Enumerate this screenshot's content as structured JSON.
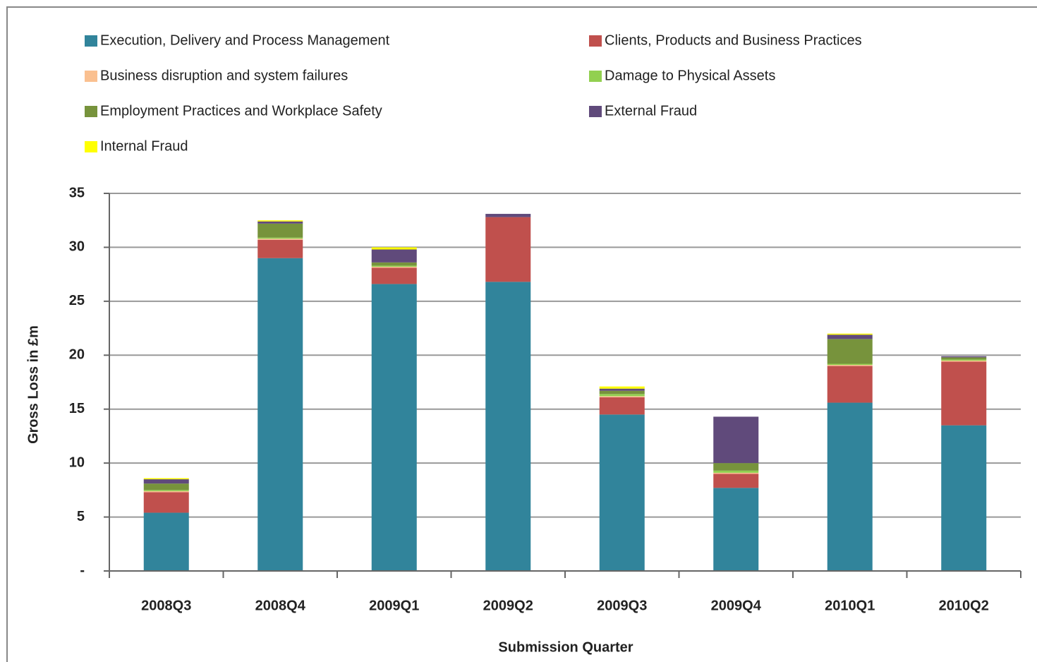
{
  "chart_data": {
    "type": "stacked-bar",
    "y_label": "Gross Loss in £m",
    "x_label": "Submission Quarter",
    "categories": [
      "2008Q3",
      "2008Q4",
      "2009Q1",
      "2009Q2",
      "2009Q3",
      "2009Q4",
      "2010Q1",
      "2010Q2"
    ],
    "series": [
      {
        "name": "Execution, Delivery and Process Management",
        "color": "#31849b",
        "values": [
          5.4,
          29.0,
          26.6,
          26.8,
          14.5,
          7.7,
          15.6,
          13.5
        ]
      },
      {
        "name": "Clients, Products and Business Practices",
        "color": "#c0504d",
        "values": [
          1.9,
          1.7,
          1.5,
          6.0,
          1.6,
          1.3,
          3.4,
          5.9
        ]
      },
      {
        "name": "Business disruption and system failures",
        "color": "#fac090",
        "values": [
          0.1,
          0.1,
          0.1,
          0,
          0.1,
          0.1,
          0.1,
          0.1
        ]
      },
      {
        "name": "Damage to Physical Assets",
        "color": "#92d050",
        "values": [
          0.1,
          0.1,
          0.1,
          0,
          0.2,
          0.2,
          0.1,
          0.1
        ]
      },
      {
        "name": "Employment Practices and Workplace Safety",
        "color": "#77933c",
        "values": [
          0.6,
          1.3,
          0.3,
          0,
          0.3,
          0.7,
          2.3,
          0.2
        ]
      },
      {
        "name": "External Fraud",
        "color": "#604a7b",
        "values": [
          0.4,
          0.2,
          1.2,
          0.3,
          0.2,
          4.3,
          0.4,
          0.1
        ]
      },
      {
        "name": "Internal Fraud",
        "color": "#ffff00",
        "values": [
          0.1,
          0.1,
          0.2,
          0,
          0.2,
          0,
          0.1,
          0
        ]
      }
    ],
    "ylim": [
      0,
      35
    ],
    "yticks": [
      {
        "value": 0,
        "label": "-"
      },
      5,
      10,
      15,
      20,
      25,
      30,
      35
    ],
    "grid": true,
    "legend": "top"
  }
}
